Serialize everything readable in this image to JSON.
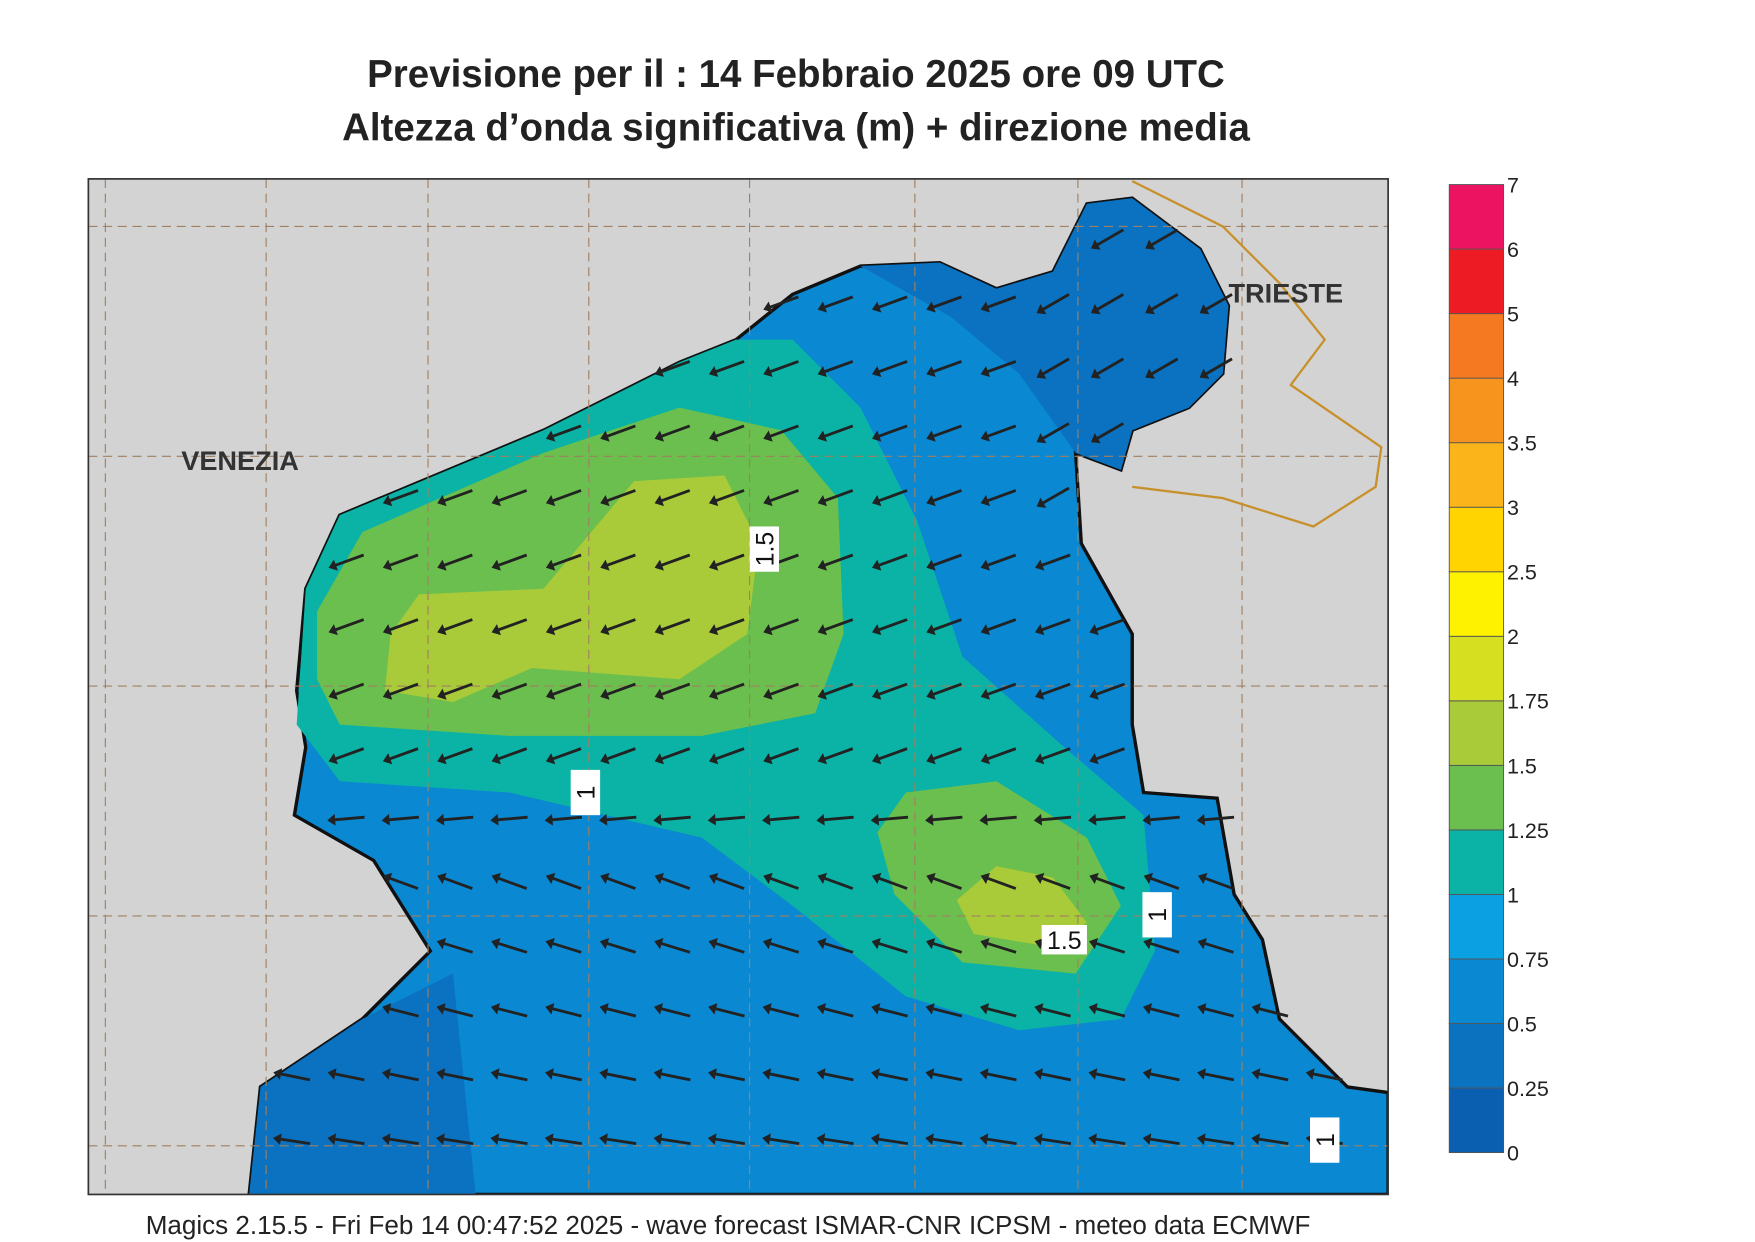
{
  "header": {
    "title": "Previsione per il  :  14  Febbraio 2025   ore 09 UTC",
    "subtitle": "Altezza d’onda significativa (m) + direzione media"
  },
  "places": [
    "VENEZIA",
    "TRIESTE"
  ],
  "contour_labels": [
    1.5,
    1,
    1.5,
    1,
    1
  ],
  "colorbar": {
    "levels": [
      0,
      0.25,
      0.5,
      0.75,
      1,
      1.25,
      1.5,
      1.75,
      2,
      2.5,
      3,
      3.5,
      4,
      5,
      6,
      7
    ],
    "colors": [
      "#0a5fb0",
      "#0b72c0",
      "#0a88d2",
      "#0aa0e2",
      "#0ab3a5",
      "#6bbf4e",
      "#a9cb3a",
      "#d6e021",
      "#fff200",
      "#ffd400",
      "#fbb41a",
      "#f7941d",
      "#f47920",
      "#ed1c24",
      "#ec1461"
    ]
  },
  "footer": "Magics 2.15.5 - Fri Feb 14 00:47:52 2025 - wave forecast  ISMAR-CNR  ICPSM - meteo data    ECMWF"
}
